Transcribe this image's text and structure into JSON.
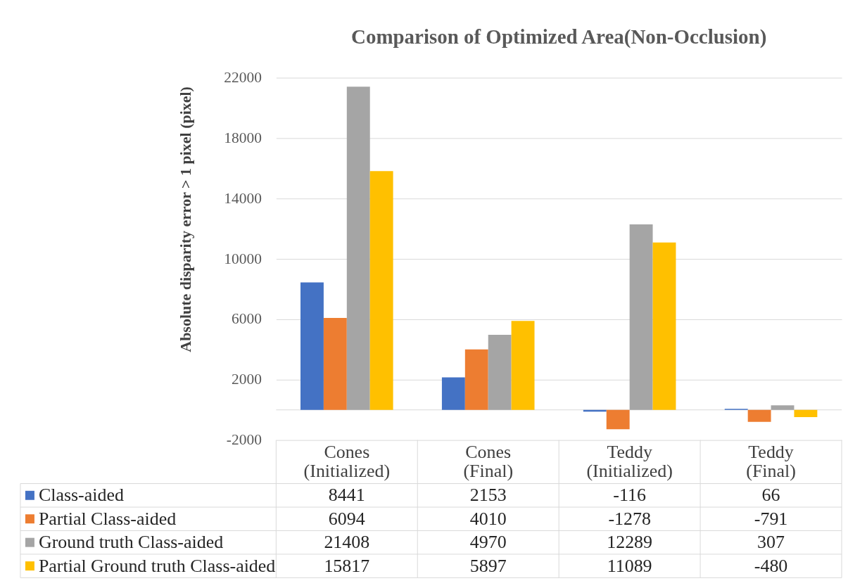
{
  "chart_data": {
    "type": "bar",
    "title": "Comparison of Optimized Area(Non-Occlusion)",
    "ylabel": "Absolute disparity error > 1 pixel (pixel)",
    "categories": [
      "Cones (Initialized)",
      "Cones (Final)",
      "Teddy (Initialized)",
      "Teddy (Final)"
    ],
    "series": [
      {
        "name": "Class-aided",
        "color": "#4472c4",
        "values": [
          8441,
          2153,
          -116,
          66
        ]
      },
      {
        "name": "Partial Class-aided",
        "color": "#ed7d31",
        "values": [
          6094,
          4010,
          -1278,
          -791
        ]
      },
      {
        "name": "Ground truth Class-aided",
        "color": "#a5a5a5",
        "values": [
          21408,
          4970,
          12289,
          307
        ]
      },
      {
        "name": "Partial Ground truth Class-aided",
        "color": "#ffc000",
        "values": [
          15817,
          5897,
          11089,
          -480
        ]
      }
    ],
    "ylim": [
      -2000,
      22000
    ],
    "yticks": [
      -2000,
      2000,
      6000,
      10000,
      14000,
      18000,
      22000
    ],
    "grid": "y",
    "legend": "bottom",
    "data_labels": true
  }
}
